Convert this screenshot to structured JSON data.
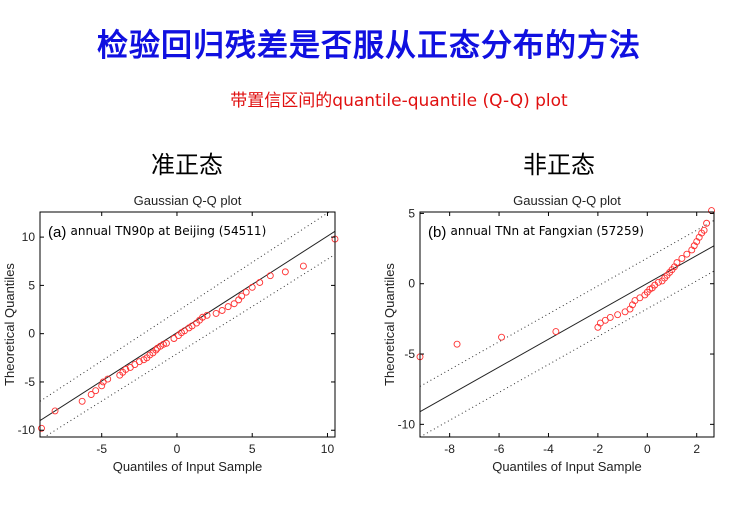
{
  "header": {
    "title": "检验回归残差是否服从正态分布的方法",
    "subtitle": "带置信区间的quantile-quantile (Q-Q) plot",
    "title_color": "#1010e0",
    "subtitle_color": "#e01010"
  },
  "panels": {
    "left_label": "准正态",
    "right_label": "非正态"
  },
  "chart_data": [
    {
      "type": "scatter",
      "title": "Gaussian Q-Q plot",
      "panel_label": "(a)",
      "annotation": "annual TN90p at Beijing (54511)",
      "xlabel": "Quantiles of Input Sample",
      "ylabel": "Theoretical Quantiles",
      "xlim": [
        -9.1,
        10.5
      ],
      "ylim": [
        -10.7,
        12.6
      ],
      "xticks": [
        -5,
        0,
        5,
        10
      ],
      "yticks": [
        -10,
        -5,
        0,
        5,
        10
      ],
      "reference_line": {
        "x": [
          -9.1,
          10.5
        ],
        "y": [
          -9.0,
          10.6
        ]
      },
      "confidence_band": {
        "upper": {
          "x": [
            -9.1,
            10.5
          ],
          "y": [
            -7.0,
            13.0
          ]
        },
        "lower": {
          "x": [
            -9.1,
            10.5
          ],
          "y": [
            -11.0,
            8.2
          ]
        }
      },
      "marker_color": "#ff3030",
      "points": [
        [
          -9.0,
          -9.8
        ],
        [
          -8.1,
          -8.0
        ],
        [
          -6.3,
          -7.0
        ],
        [
          -5.7,
          -6.3
        ],
        [
          -5.4,
          -5.9
        ],
        [
          -5.0,
          -5.4
        ],
        [
          -4.9,
          -5.0
        ],
        [
          -4.6,
          -4.7
        ],
        [
          -3.8,
          -4.3
        ],
        [
          -3.6,
          -4.0
        ],
        [
          -3.4,
          -3.7
        ],
        [
          -3.1,
          -3.5
        ],
        [
          -2.8,
          -3.2
        ],
        [
          -2.5,
          -2.9
        ],
        [
          -2.2,
          -2.7
        ],
        [
          -2.0,
          -2.5
        ],
        [
          -1.8,
          -2.2
        ],
        [
          -1.6,
          -2.0
        ],
        [
          -1.4,
          -1.7
        ],
        [
          -1.3,
          -1.5
        ],
        [
          -1.1,
          -1.3
        ],
        [
          -0.9,
          -1.1
        ],
        [
          -0.7,
          -1.0
        ],
        [
          -0.2,
          -0.5
        ],
        [
          0.1,
          -0.2
        ],
        [
          0.3,
          0.1
        ],
        [
          0.5,
          0.3
        ],
        [
          0.8,
          0.6
        ],
        [
          1.0,
          0.8
        ],
        [
          1.3,
          1.1
        ],
        [
          1.5,
          1.4
        ],
        [
          1.7,
          1.7
        ],
        [
          2.0,
          1.9
        ],
        [
          2.6,
          2.1
        ],
        [
          3.0,
          2.4
        ],
        [
          3.4,
          2.8
        ],
        [
          3.8,
          3.1
        ],
        [
          4.1,
          3.5
        ],
        [
          4.3,
          3.9
        ],
        [
          4.6,
          4.3
        ],
        [
          5.0,
          4.8
        ],
        [
          5.5,
          5.3
        ],
        [
          6.2,
          6.0
        ],
        [
          7.2,
          6.4
        ],
        [
          8.4,
          7.0
        ],
        [
          10.5,
          9.8
        ]
      ]
    },
    {
      "type": "scatter",
      "title": "Gaussian Q-Q plot",
      "panel_label": "(b)",
      "annotation": "annual TNn at Fangxian (57259)",
      "xlabel": "Quantiles of Input Sample",
      "ylabel": "Theoretical Quantiles",
      "xlim": [
        -9.2,
        2.7
      ],
      "ylim": [
        -10.9,
        5.1
      ],
      "xticks": [
        -8,
        -6,
        -4,
        -2,
        0,
        2
      ],
      "yticks": [
        -10,
        -5,
        0,
        5
      ],
      "reference_line": {
        "x": [
          -9.2,
          2.7
        ],
        "y": [
          -9.1,
          2.7
        ]
      },
      "confidence_band": {
        "upper": {
          "x": [
            -9.2,
            2.7
          ],
          "y": [
            -7.3,
            4.5
          ]
        },
        "lower": {
          "x": [
            -9.2,
            2.7
          ],
          "y": [
            -10.9,
            0.9
          ]
        }
      },
      "marker_color": "#ff3030",
      "points": [
        [
          -9.2,
          -5.2
        ],
        [
          -7.7,
          -4.3
        ],
        [
          -5.9,
          -3.8
        ],
        [
          -3.7,
          -3.4
        ],
        [
          -2.0,
          -3.1
        ],
        [
          -1.9,
          -2.8
        ],
        [
          -1.7,
          -2.6
        ],
        [
          -1.5,
          -2.4
        ],
        [
          -1.2,
          -2.2
        ],
        [
          -0.9,
          -2.0
        ],
        [
          -0.7,
          -1.8
        ],
        [
          -0.6,
          -1.5
        ],
        [
          -0.5,
          -1.2
        ],
        [
          -0.3,
          -1.0
        ],
        [
          -0.1,
          -0.8
        ],
        [
          0.0,
          -0.6
        ],
        [
          0.1,
          -0.4
        ],
        [
          0.2,
          -0.3
        ],
        [
          0.3,
          -0.1
        ],
        [
          0.45,
          0.1
        ],
        [
          0.6,
          0.2
        ],
        [
          0.7,
          0.4
        ],
        [
          0.8,
          0.6
        ],
        [
          0.9,
          0.8
        ],
        [
          1.0,
          1.0
        ],
        [
          1.1,
          1.2
        ],
        [
          1.2,
          1.5
        ],
        [
          1.4,
          1.8
        ],
        [
          1.6,
          2.1
        ],
        [
          1.8,
          2.4
        ],
        [
          1.9,
          2.7
        ],
        [
          2.0,
          3.0
        ],
        [
          2.1,
          3.3
        ],
        [
          2.2,
          3.6
        ],
        [
          2.3,
          3.8
        ],
        [
          2.4,
          4.3
        ],
        [
          2.6,
          5.2
        ]
      ]
    }
  ]
}
